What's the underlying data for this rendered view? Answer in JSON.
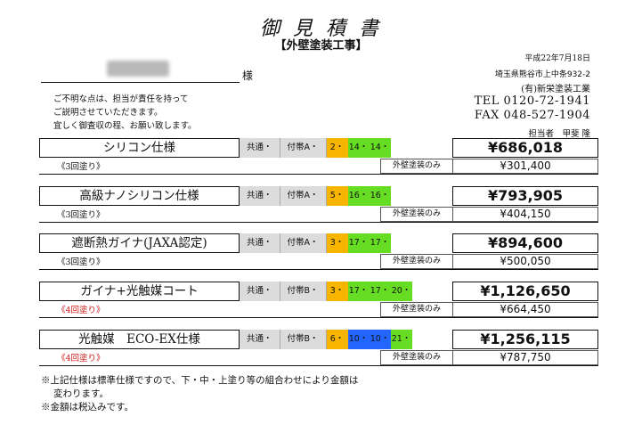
{
  "header": {
    "title": "御 見 積 書",
    "subtitle": "【外壁塗装工事】",
    "customer_suffix": "様",
    "notes": [
      "ご不明な点は、担当が責任を持って",
      "ご説明させていただきます。",
      "宜しく御査収の程、お願い致します。"
    ]
  },
  "company": {
    "date": "平成22年7月18日",
    "address": "埼玉県熊谷市上中条932-2",
    "name": "(有)新栄塗装工業",
    "tel": "TEL 0120-72-1941",
    "fax": "FAX 048-527-1904",
    "person": "担当者　甲斐 隆"
  },
  "colors": {
    "orange": "#f7b500",
    "green": "#66dd22",
    "blue": "#2266ff",
    "grey": "#dcdcdc",
    "red_text": "#d01818"
  },
  "estimates": [
    {
      "name": "シリコン仕様",
      "common": "共通・",
      "fu": "付帯A・",
      "cells": [
        {
          "text": "2・",
          "color": "#f7b500"
        },
        {
          "text": "14・",
          "color": "#66dd22"
        },
        {
          "text": "14・",
          "color": "#66dd22"
        }
      ],
      "price": "¥686,018",
      "coats": "《3回塗り》",
      "coats_red": false,
      "ext_label": "外壁塗装のみ",
      "ext_price": "¥301,400"
    },
    {
      "name": "高級ナノシリコン仕様",
      "common": "共通・",
      "fu": "付帯A・",
      "cells": [
        {
          "text": "5・",
          "color": "#f7b500"
        },
        {
          "text": "16・",
          "color": "#66dd22"
        },
        {
          "text": "16・",
          "color": "#66dd22"
        }
      ],
      "price": "¥793,905",
      "coats": "《3回塗り》",
      "coats_red": false,
      "ext_label": "外壁塗装のみ",
      "ext_price": "¥404,150"
    },
    {
      "name": "遮断熱ガイナ(JAXA認定)",
      "common": "共通・",
      "fu": "付帯A・",
      "cells": [
        {
          "text": "3・",
          "color": "#f7b500"
        },
        {
          "text": "17・",
          "color": "#66dd22"
        },
        {
          "text": "17・",
          "color": "#66dd22"
        }
      ],
      "price": "¥894,600",
      "coats": "《3回塗り》",
      "coats_red": false,
      "ext_label": "外壁塗装のみ",
      "ext_price": "¥500,050"
    },
    {
      "name": "ガイナ+光触媒コート",
      "common": "共通・",
      "fu": "付帯B・",
      "cells": [
        {
          "text": "3・",
          "color": "#f7b500"
        },
        {
          "text": "17・",
          "color": "#66dd22"
        },
        {
          "text": "17・",
          "color": "#66dd22"
        },
        {
          "text": "20・",
          "color": "#66dd22"
        }
      ],
      "price": "¥1,126,650",
      "coats": "《4回塗り》",
      "coats_red": true,
      "ext_label": "外壁塗装のみ",
      "ext_price": "¥664,450"
    },
    {
      "name": "光触媒　ECO-EX仕様",
      "common": "共通・",
      "fu": "付帯B・",
      "cells": [
        {
          "text": "6・",
          "color": "#f7b500"
        },
        {
          "text": "10・",
          "color": "#2266ff"
        },
        {
          "text": "10・",
          "color": "#2266ff"
        },
        {
          "text": "21・",
          "color": "#66dd22"
        }
      ],
      "price": "¥1,256,115",
      "coats": "《4回塗り》",
      "coats_red": true,
      "ext_label": "外壁塗装のみ",
      "ext_price": "¥787,750"
    }
  ],
  "footnotes": [
    "※上記仕様は標準仕様ですので、下・中・上塗り等の組合わせにより金額は",
    "変わります。",
    "※金額は税込みです。"
  ]
}
